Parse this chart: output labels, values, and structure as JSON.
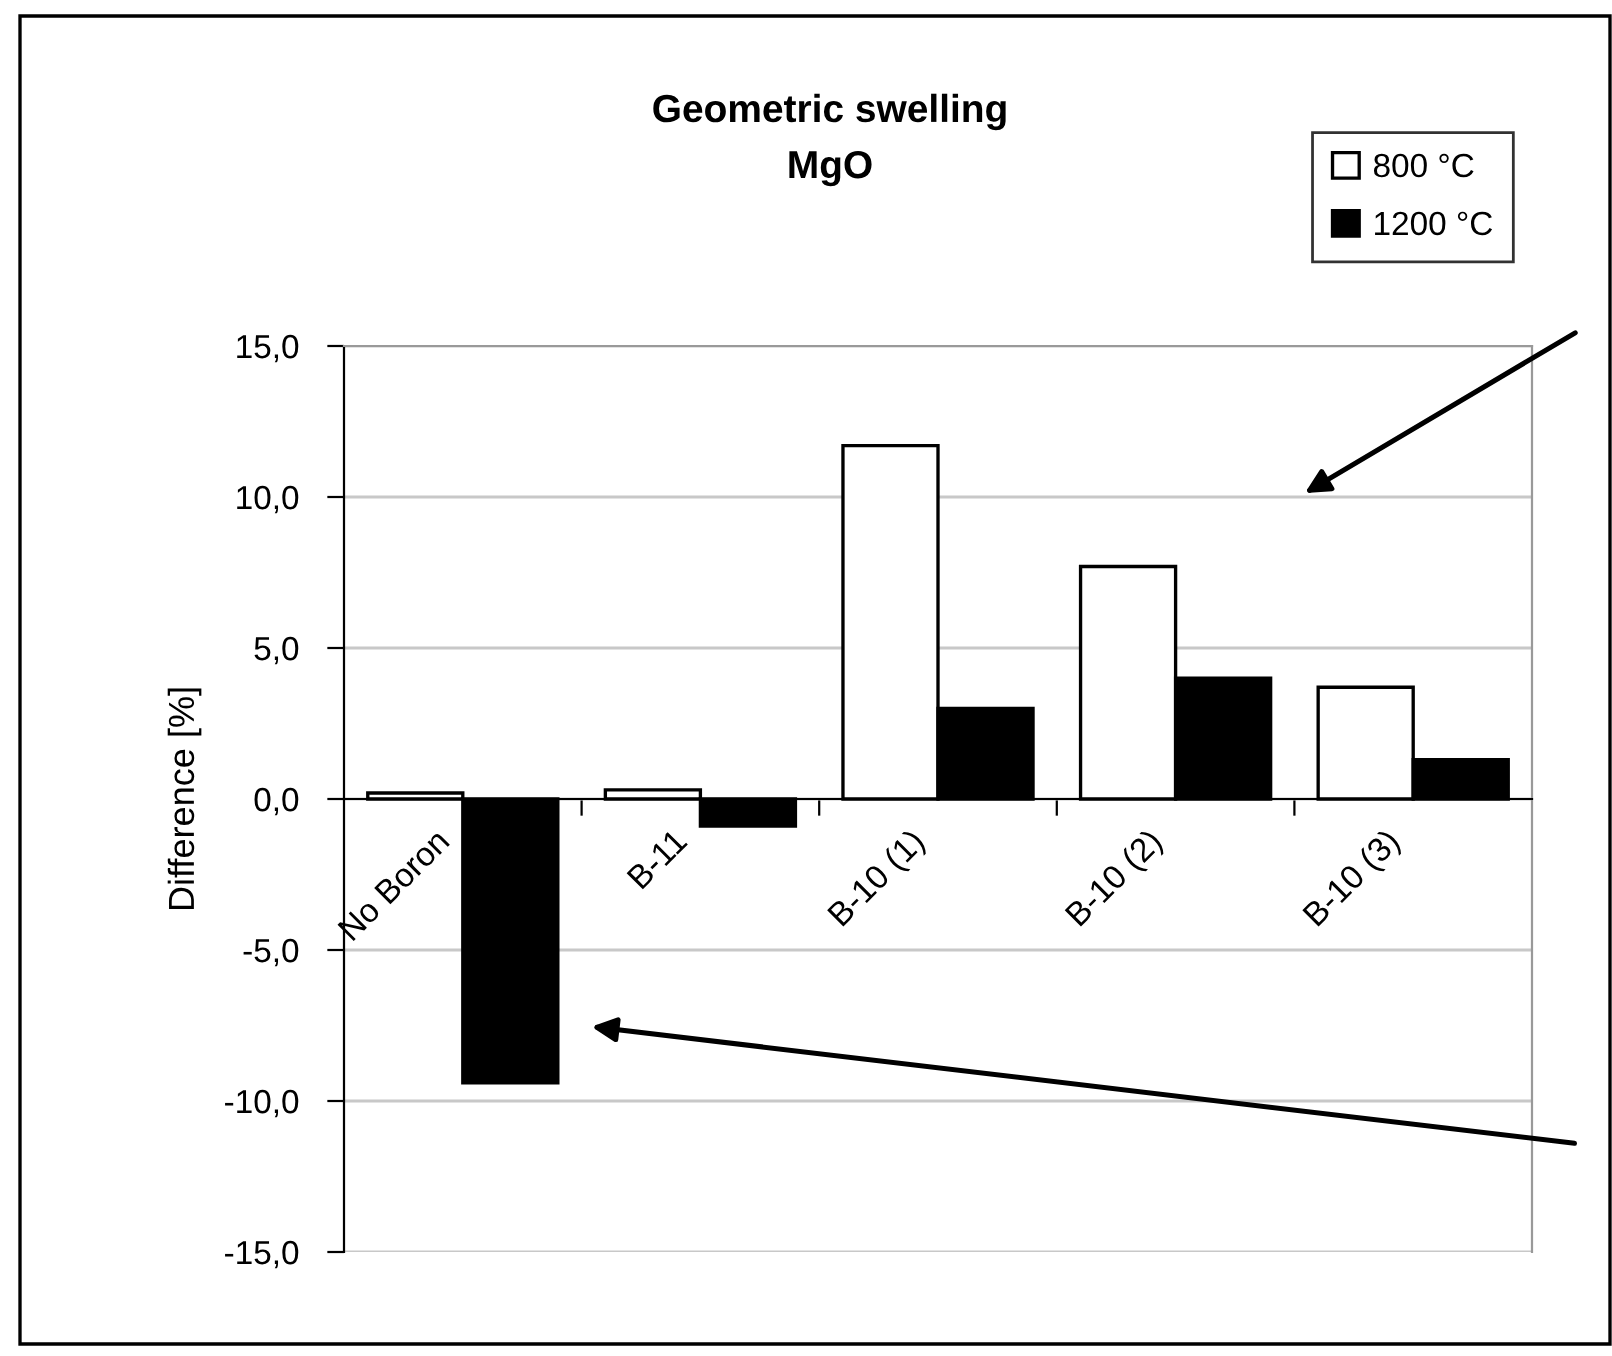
{
  "chart_data": {
    "type": "bar",
    "title": "Geometric swelling\nMgO",
    "ylabel": "Difference [%]",
    "categories": [
      "No Boron",
      "B-11",
      "B-10 (1)",
      "B-10 (2)",
      "B-10 (3)"
    ],
    "series": [
      {
        "name": "800 °C",
        "color": "#ffffff",
        "values": [
          0.2,
          0.3,
          11.7,
          7.7,
          3.7
        ]
      },
      {
        "name": "1200 °C",
        "color": "#000000",
        "values": [
          -9.4,
          -0.9,
          3.0,
          4.0,
          1.3
        ]
      }
    ],
    "ylim": [
      -15,
      15
    ],
    "yticks": [
      {
        "value": -15,
        "label": "-15,0"
      },
      {
        "value": -10,
        "label": "-10,0"
      },
      {
        "value": -5,
        "label": "-5,0"
      },
      {
        "value": 0,
        "label": "0,0"
      },
      {
        "value": 5,
        "label": "5,0"
      },
      {
        "value": 10,
        "label": "10,0"
      },
      {
        "value": 15,
        "label": "15,0"
      }
    ],
    "grid": "y",
    "legend": "top right"
  }
}
